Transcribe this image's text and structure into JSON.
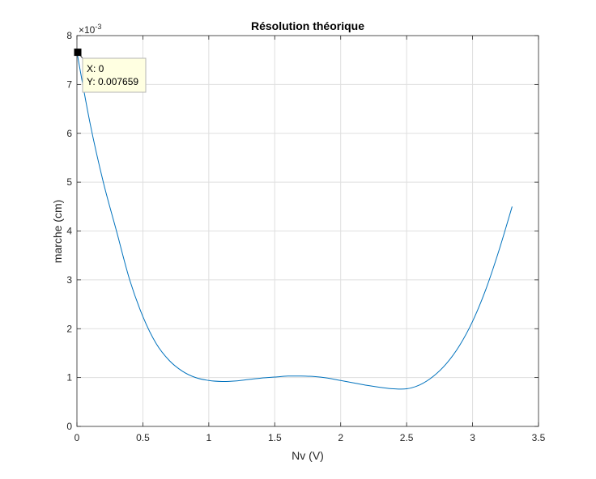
{
  "chart_data": {
    "type": "line",
    "title": "Résolution théorique",
    "xlabel": "Nv (V)",
    "ylabel": "marche (cm)",
    "y_exponent_label": "×10",
    "y_exponent_power": "-3",
    "xlim": [
      0,
      3.5
    ],
    "ylim": [
      0,
      0.008
    ],
    "xticks": [
      0,
      0.5,
      1,
      1.5,
      2,
      2.5,
      3,
      3.5
    ],
    "xtick_labels": [
      "0",
      "0.5",
      "1",
      "1.5",
      "2",
      "2.5",
      "3",
      "3.5"
    ],
    "yticks": [
      0,
      0.001,
      0.002,
      0.003,
      0.004,
      0.005,
      0.006,
      0.007,
      0.008
    ],
    "ytick_labels": [
      "0",
      "1",
      "2",
      "3",
      "4",
      "5",
      "6",
      "7",
      "8"
    ],
    "grid": true,
    "series": [
      {
        "color": "#0072bd",
        "x": [
          0,
          0.1,
          0.2,
          0.3,
          0.4,
          0.5,
          0.6,
          0.7,
          0.8,
          0.9,
          1.0,
          1.1,
          1.2,
          1.3,
          1.4,
          1.5,
          1.6,
          1.7,
          1.8,
          1.9,
          2.0,
          2.1,
          2.2,
          2.3,
          2.4,
          2.5,
          2.6,
          2.7,
          2.8,
          2.9,
          3.0,
          3.1,
          3.2,
          3.3
        ],
        "y": [
          0.007659,
          0.0062,
          0.005,
          0.004,
          0.003,
          0.00225,
          0.0017,
          0.00135,
          0.00113,
          0.001,
          0.00094,
          0.00092,
          0.00093,
          0.00096,
          0.00099,
          0.00101,
          0.00103,
          0.00103,
          0.00102,
          0.00099,
          0.00094,
          0.00089,
          0.00084,
          0.0008,
          0.00077,
          0.00077,
          0.00085,
          0.00102,
          0.00128,
          0.00165,
          0.00215,
          0.0028,
          0.0036,
          0.0045
        ]
      }
    ],
    "datatip": {
      "x_text": "X: 0",
      "y_text": "Y: 0.007659",
      "x": 0,
      "y": 0.007659
    }
  }
}
